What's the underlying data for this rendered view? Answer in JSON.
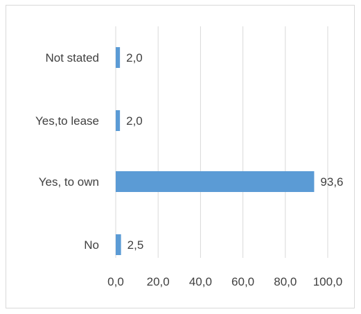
{
  "chart_data": {
    "type": "bar",
    "orientation": "horizontal",
    "categories": [
      "Not stated",
      "Yes,to lease",
      "Yes, to own",
      "No"
    ],
    "values": [
      2.0,
      2.0,
      93.6,
      2.5
    ],
    "data_labels": [
      "2,0",
      "2,0",
      "93,6",
      "2,5"
    ],
    "xlim": [
      0,
      100
    ],
    "x_ticks": [
      0,
      20,
      40,
      60,
      80,
      100
    ],
    "x_tick_labels": [
      "0,0",
      "20,0",
      "40,0",
      "60,0",
      "80,0",
      "100,0"
    ],
    "grid": "vertical",
    "legend": "none",
    "bar_color": "#5b9bd5",
    "grid_color": "#d9d9d9"
  }
}
